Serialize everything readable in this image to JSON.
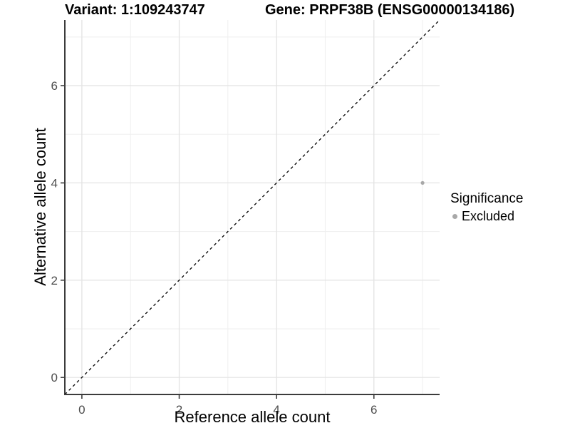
{
  "chart_data": {
    "type": "scatter",
    "title_left": "Variant: 1:109243747",
    "title_right": "Gene: PRPF38B (ENSG00000134186)",
    "xlabel": "Reference allele count",
    "ylabel": "Alternative allele count",
    "xlim": [
      -0.35,
      7.35
    ],
    "ylim": [
      -0.35,
      7.35
    ],
    "x_major_ticks": [
      0,
      2,
      4,
      6
    ],
    "y_major_ticks": [
      0,
      2,
      4,
      6
    ],
    "x_minor_ticks": [
      1,
      3,
      5,
      7
    ],
    "y_minor_ticks": [
      1,
      3,
      5,
      7
    ],
    "grid": "major+minor",
    "reference_line": {
      "slope": 1,
      "intercept": 0,
      "style": "dashed",
      "color": "#000000"
    },
    "series": [
      {
        "name": "Excluded",
        "color": "#a8a8a8",
        "points": [
          [
            7,
            4
          ]
        ]
      }
    ],
    "legend": {
      "title": "Significance",
      "position": "right",
      "items": [
        {
          "label": "Excluded",
          "color": "#a8a8a8"
        }
      ]
    }
  },
  "colors": {
    "background": "#ffffff",
    "grid_major": "#e3e3e3",
    "grid_minor": "#efefef",
    "axis_line": "#3c3c3c",
    "tick_label": "#4d4d4d",
    "point": "#a8a8a8",
    "reference_line": "#000000"
  }
}
